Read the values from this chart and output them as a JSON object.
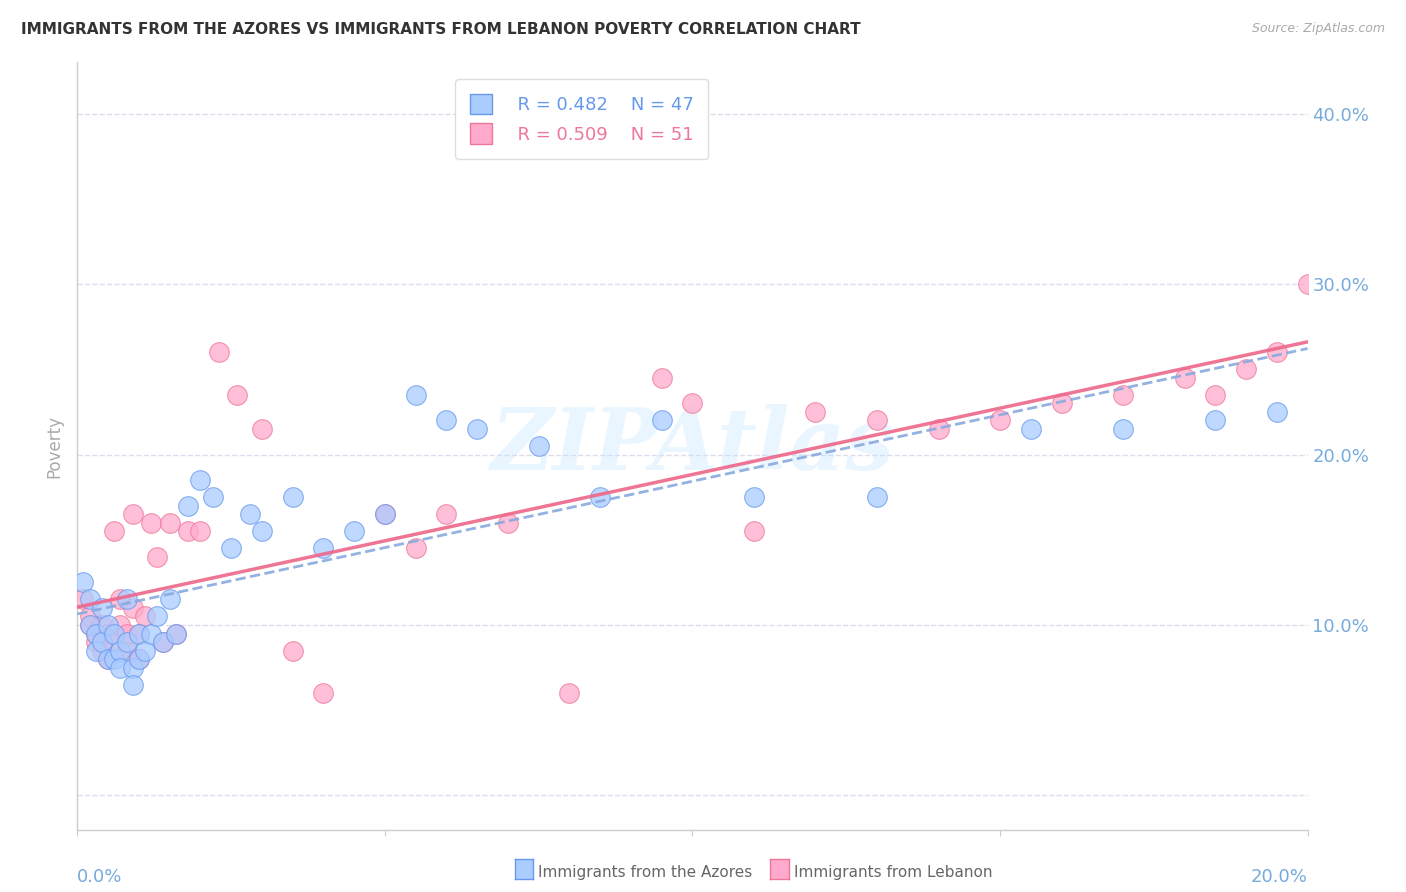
{
  "title": "IMMIGRANTS FROM THE AZORES VS IMMIGRANTS FROM LEBANON POVERTY CORRELATION CHART",
  "source": "Source: ZipAtlas.com",
  "ylabel": "Poverty",
  "yticks": [
    0.0,
    0.1,
    0.2,
    0.3,
    0.4
  ],
  "ytick_labels": [
    "",
    "10.0%",
    "20.0%",
    "30.0%",
    "40.0%"
  ],
  "xlim": [
    0.0,
    0.2
  ],
  "ylim": [
    -0.02,
    0.43
  ],
  "watermark": "ZIPAtlas",
  "legend_r1": "R = 0.482",
  "legend_n1": "N = 47",
  "legend_r2": "R = 0.509",
  "legend_n2": "N = 51",
  "color_azores": "#aaccff",
  "color_lebanon": "#ffaacc",
  "edge_azores": "#6699ee",
  "edge_lebanon": "#ee7799",
  "trendline_azores": "#88aade",
  "trendline_lebanon": "#ee6688",
  "background": "#ffffff",
  "grid_color": "#ddddee",
  "tick_color": "#77aadd",
  "azores_x": [
    0.001,
    0.002,
    0.002,
    0.003,
    0.003,
    0.004,
    0.004,
    0.005,
    0.005,
    0.006,
    0.006,
    0.007,
    0.007,
    0.008,
    0.008,
    0.009,
    0.009,
    0.01,
    0.01,
    0.011,
    0.012,
    0.013,
    0.014,
    0.015,
    0.016,
    0.018,
    0.02,
    0.022,
    0.025,
    0.028,
    0.03,
    0.035,
    0.04,
    0.045,
    0.05,
    0.055,
    0.06,
    0.065,
    0.075,
    0.085,
    0.095,
    0.11,
    0.13,
    0.155,
    0.17,
    0.185,
    0.195
  ],
  "azores_y": [
    0.125,
    0.115,
    0.1,
    0.095,
    0.085,
    0.11,
    0.09,
    0.08,
    0.1,
    0.095,
    0.08,
    0.085,
    0.075,
    0.09,
    0.115,
    0.075,
    0.065,
    0.08,
    0.095,
    0.085,
    0.095,
    0.105,
    0.09,
    0.115,
    0.095,
    0.17,
    0.185,
    0.175,
    0.145,
    0.165,
    0.155,
    0.175,
    0.145,
    0.155,
    0.165,
    0.235,
    0.22,
    0.215,
    0.205,
    0.175,
    0.22,
    0.175,
    0.175,
    0.215,
    0.215,
    0.22,
    0.225
  ],
  "lebanon_x": [
    0.001,
    0.002,
    0.002,
    0.003,
    0.003,
    0.004,
    0.004,
    0.005,
    0.005,
    0.006,
    0.006,
    0.007,
    0.007,
    0.008,
    0.008,
    0.009,
    0.009,
    0.01,
    0.01,
    0.011,
    0.012,
    0.013,
    0.014,
    0.015,
    0.016,
    0.018,
    0.02,
    0.023,
    0.026,
    0.03,
    0.035,
    0.04,
    0.05,
    0.055,
    0.06,
    0.07,
    0.08,
    0.095,
    0.1,
    0.11,
    0.12,
    0.13,
    0.14,
    0.15,
    0.16,
    0.17,
    0.18,
    0.185,
    0.19,
    0.195,
    0.2
  ],
  "lebanon_y": [
    0.115,
    0.1,
    0.105,
    0.095,
    0.09,
    0.085,
    0.1,
    0.08,
    0.095,
    0.09,
    0.155,
    0.1,
    0.115,
    0.085,
    0.095,
    0.165,
    0.11,
    0.08,
    0.095,
    0.105,
    0.16,
    0.14,
    0.09,
    0.16,
    0.095,
    0.155,
    0.155,
    0.26,
    0.235,
    0.215,
    0.085,
    0.06,
    0.165,
    0.145,
    0.165,
    0.16,
    0.06,
    0.245,
    0.23,
    0.155,
    0.225,
    0.22,
    0.215,
    0.22,
    0.23,
    0.235,
    0.245,
    0.235,
    0.25,
    0.26,
    0.3
  ]
}
